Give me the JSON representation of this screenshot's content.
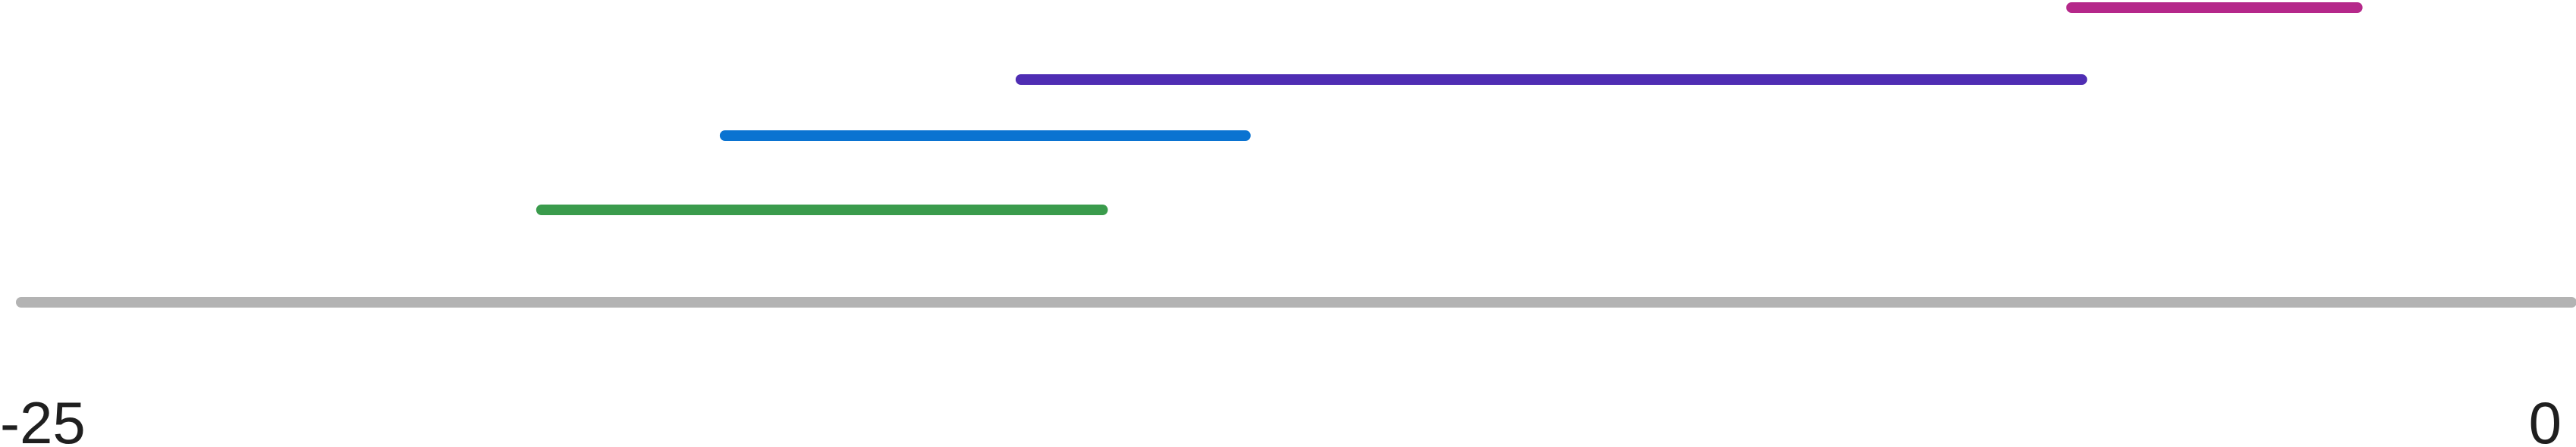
{
  "chart_data": {
    "type": "range-bar",
    "title": "",
    "xlabel": "",
    "ylabel": "",
    "xlim": [
      -25,
      0
    ],
    "axis": {
      "color": "#b3b3b3",
      "ticks": [
        {
          "value": -25,
          "label": "-25"
        },
        {
          "value": 0,
          "label": "0"
        }
      ]
    },
    "series": [
      {
        "start": -4.9,
        "end": -2.1,
        "color": "#b5288a"
      },
      {
        "start": -15.2,
        "end": -4.8,
        "color": "#4f2db3"
      },
      {
        "start": -18.1,
        "end": -13.0,
        "color": "#0a73d1"
      },
      {
        "start": -19.9,
        "end": -14.4,
        "color": "#3a9b4c"
      }
    ]
  }
}
